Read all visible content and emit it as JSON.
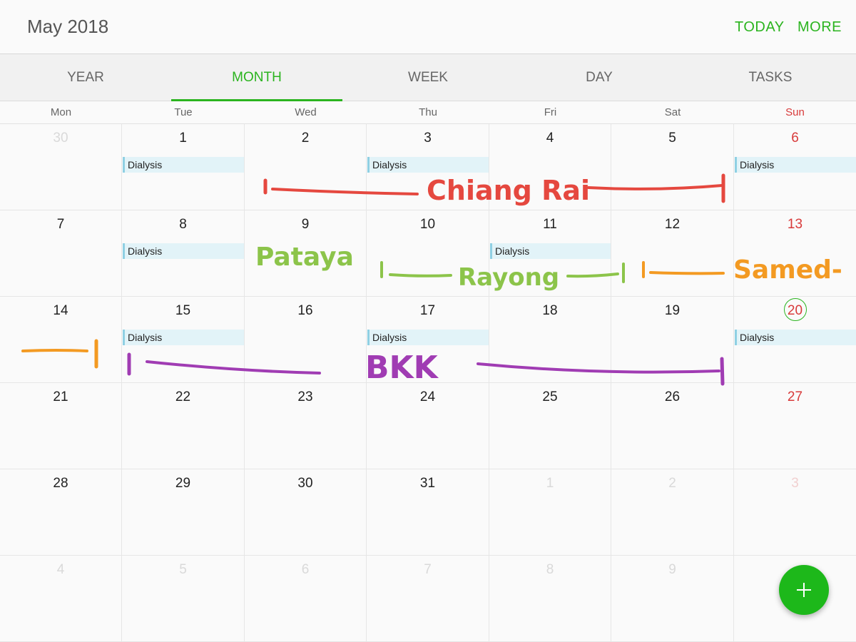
{
  "header": {
    "title": "May 2018",
    "today_label": "TODAY",
    "more_label": "MORE"
  },
  "tabs": [
    {
      "label": "YEAR",
      "active": false
    },
    {
      "label": "MONTH",
      "active": true
    },
    {
      "label": "WEEK",
      "active": false
    },
    {
      "label": "DAY",
      "active": false
    },
    {
      "label": "TASKS",
      "active": false
    }
  ],
  "weekdays": [
    "Mon",
    "Tue",
    "Wed",
    "Thu",
    "Fri",
    "Sat",
    "Sun"
  ],
  "weeks": [
    [
      {
        "day": "30",
        "faded": true
      },
      {
        "day": "1",
        "event": "Dialysis"
      },
      {
        "day": "2"
      },
      {
        "day": "3",
        "event": "Dialysis"
      },
      {
        "day": "4"
      },
      {
        "day": "5"
      },
      {
        "day": "6",
        "event": "Dialysis"
      }
    ],
    [
      {
        "day": "7"
      },
      {
        "day": "8",
        "event": "Dialysis"
      },
      {
        "day": "9"
      },
      {
        "day": "10"
      },
      {
        "day": "11",
        "event": "Dialysis"
      },
      {
        "day": "12"
      },
      {
        "day": "13"
      }
    ],
    [
      {
        "day": "14"
      },
      {
        "day": "15",
        "event": "Dialysis"
      },
      {
        "day": "16"
      },
      {
        "day": "17",
        "event": "Dialysis"
      },
      {
        "day": "18"
      },
      {
        "day": "19"
      },
      {
        "day": "20",
        "event": "Dialysis",
        "today": true
      }
    ],
    [
      {
        "day": "21"
      },
      {
        "day": "22"
      },
      {
        "day": "23"
      },
      {
        "day": "24"
      },
      {
        "day": "25"
      },
      {
        "day": "26"
      },
      {
        "day": "27"
      }
    ],
    [
      {
        "day": "28"
      },
      {
        "day": "29"
      },
      {
        "day": "30"
      },
      {
        "day": "31"
      },
      {
        "day": "1",
        "faded": true
      },
      {
        "day": "2",
        "faded": true
      },
      {
        "day": "3",
        "faded": true
      }
    ],
    [
      {
        "day": "4",
        "faded": true
      },
      {
        "day": "5",
        "faded": true
      },
      {
        "day": "6",
        "faded": true
      },
      {
        "day": "7",
        "faded": true
      },
      {
        "day": "8",
        "faded": true
      },
      {
        "day": "9",
        "faded": true
      },
      {
        "day": "",
        "faded": true
      }
    ]
  ],
  "annotations": [
    {
      "text": "Chiang Rai",
      "color": "#e5483f"
    },
    {
      "text": "Pataya",
      "color": "#8cc44a"
    },
    {
      "text": "Rayong",
      "color": "#8cc44a"
    },
    {
      "text": "Samed-",
      "color": "#f39a22"
    },
    {
      "text": "BKK",
      "color": "#a03cb3"
    }
  ],
  "fab_icon": "plus-icon",
  "colors": {
    "accent": "#2bb41f",
    "sunday": "#d83a3a",
    "event_bg": "#e2f3f8"
  }
}
